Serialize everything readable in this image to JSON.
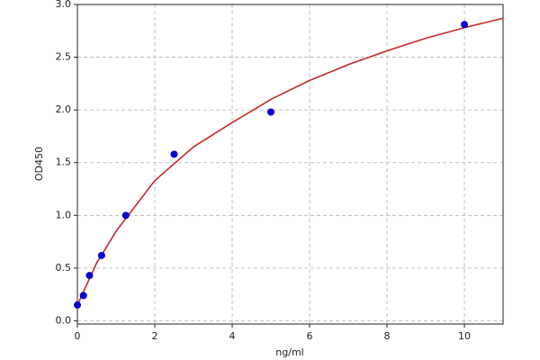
{
  "chart_data": {
    "type": "scatter",
    "x_label": "ng/ml",
    "y_label": "OD450",
    "xlim": [
      0,
      11
    ],
    "xticks": [
      0,
      2,
      4,
      6,
      8,
      10
    ],
    "ylim": [
      -0.03,
      3.0
    ],
    "yticks": [
      {
        "value": 0,
        "label": "0.0"
      },
      0.5,
      {
        "value": 1,
        "label": "1.0"
      },
      1.5,
      {
        "value": 2,
        "label": "2.0"
      },
      2.5,
      {
        "value": 3,
        "label": "3.0"
      }
    ],
    "grid": true,
    "series": [
      {
        "type": "line",
        "color": "#c62828",
        "x": [
          0,
          0.5,
          1,
          2,
          3,
          4,
          5,
          6,
          7,
          8,
          9,
          10,
          11
        ],
        "values": [
          0.15,
          0.55,
          0.85,
          1.33,
          1.65,
          1.88,
          2.1,
          2.28,
          2.43,
          2.56,
          2.68,
          2.78,
          2.87
        ]
      },
      {
        "type": "scatter",
        "color": "#0000cc",
        "x": [
          0,
          0.156,
          0.3125,
          0.625,
          1.25,
          2.5,
          5,
          10
        ],
        "values": [
          0.15,
          0.24,
          0.43,
          0.62,
          1.0,
          1.58,
          1.98,
          2.81
        ]
      }
    ]
  }
}
